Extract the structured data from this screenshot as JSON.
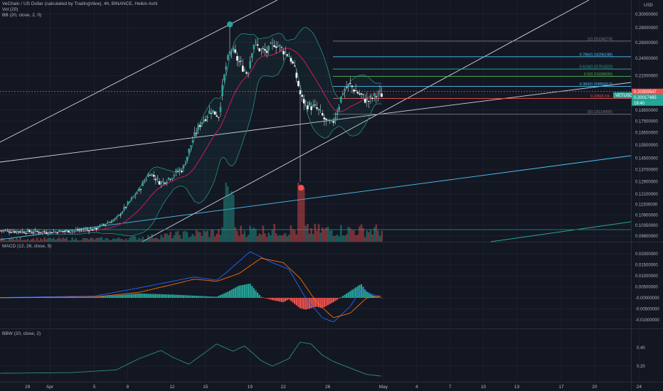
{
  "legend": {
    "title": "VeChain / US Dollar (calculated by TradingView), 4h, BINANCE, Heikin Ashi",
    "vol": "Vol (20)",
    "bb": "BB (20, close, 2, 0)",
    "macd": "MACD (12, 26, close, 9)",
    "bbw": "BBW (20, close, 2)"
  },
  "colors": {
    "background": "#131722",
    "up": "#26a69a",
    "down": "#ef5350",
    "bb_basis": "#c2185b",
    "bb_band": "#2a8f80",
    "macd": "#2962ff",
    "signal": "#ff6d00",
    "trendline": "#d1d4dc",
    "cyan_line": "#4fc3f7"
  },
  "currency": "USD",
  "chart_data": [
    {
      "type": "candlestick",
      "name": "price",
      "scale": "log",
      "y_ticks": [
        "0.30000000",
        "0.28000000",
        "0.26000000",
        "0.24000000",
        "0.22000000",
        "0.20000000",
        "0.18500000",
        "0.17500000",
        "0.16500000",
        "0.15500000",
        "0.14500000",
        "0.13700000",
        "0.12900000",
        "0.12100000",
        "0.11500000",
        "0.10900000",
        "0.10350000",
        "0.09800000"
      ],
      "y_tick_values": [
        0.3,
        0.28,
        0.26,
        0.24,
        0.22,
        0.2,
        0.185,
        0.175,
        0.165,
        0.155,
        0.145,
        0.137,
        0.129,
        0.121,
        0.115,
        0.109,
        0.1035,
        0.098
      ],
      "x_ticks": [
        "29",
        "Apr",
        "5",
        "8",
        "12",
        "15",
        "19",
        "22",
        "26",
        "May",
        "4",
        "7",
        "10",
        "13",
        "17",
        "20",
        "24"
      ],
      "x_tick_days": [
        -2,
        0,
        4,
        7,
        11,
        14,
        18,
        21,
        25,
        30,
        33,
        36,
        39,
        42,
        46,
        49,
        53
      ],
      "price_tags": [
        {
          "label": "0.20309547",
          "value": 0.2031,
          "color": "#ef5350"
        },
        {
          "label": "VETUSD",
          "value": 0.2002,
          "color": "#26a69a"
        },
        {
          "label": "0.20017485",
          "value": 0.2002,
          "color": "#26a69a"
        },
        {
          "label": "19:40",
          "value": 0.1985,
          "color": "#26a69a"
        }
      ],
      "fib_levels": [
        {
          "label": "1(0.26194274)",
          "value": 0.26194274,
          "color": "#787b86"
        },
        {
          "label": "0.786(0.24206248)",
          "value": 0.24206248,
          "color": "#4fc3f7"
        },
        {
          "label": "0.618(0.22751822)",
          "value": 0.22751822,
          "color": "#26a69a"
        },
        {
          "label": "0.5(0.21928030)",
          "value": 0.2192803,
          "color": "#4caf50"
        },
        {
          "label": "0.382(0.20855017)",
          "value": 0.20855017,
          "color": "#4fc3f7"
        },
        {
          "label": "0.236(0.19...",
          "value": 0.1961,
          "color": "#ef5350"
        },
        {
          "label": "0(0.18114000)",
          "value": 0.18114,
          "color": "#787b86"
        }
      ],
      "events": [
        {
          "label": "high",
          "day": 16.2,
          "value": 0.285,
          "color": "#26a69a"
        },
        {
          "label": "low",
          "day": 22.6,
          "value": 0.125,
          "color": "#ef5350"
        }
      ],
      "path": [
        [
          -6.5,
          0.101
        ],
        [
          0,
          0.1
        ],
        [
          4,
          0.1015
        ],
        [
          6,
          0.107
        ],
        [
          8,
          0.123
        ],
        [
          9,
          0.135
        ],
        [
          10,
          0.128
        ],
        [
          11,
          0.133
        ],
        [
          12,
          0.138
        ],
        [
          12.8,
          0.158
        ],
        [
          13.6,
          0.174
        ],
        [
          14.5,
          0.185
        ],
        [
          15.2,
          0.18
        ],
        [
          15.8,
          0.228
        ],
        [
          16.3,
          0.252
        ],
        [
          17,
          0.236
        ],
        [
          17.8,
          0.222
        ],
        [
          18.3,
          0.26
        ],
        [
          19,
          0.25
        ],
        [
          19.6,
          0.248
        ],
        [
          20.2,
          0.26
        ],
        [
          21,
          0.25
        ],
        [
          21.6,
          0.243
        ],
        [
          22.2,
          0.218
        ],
        [
          22.6,
          0.196
        ],
        [
          23.2,
          0.19
        ],
        [
          24,
          0.186
        ],
        [
          24.6,
          0.178
        ],
        [
          25,
          0.172
        ],
        [
          25.4,
          0.172
        ],
        [
          25.9,
          0.186
        ],
        [
          26.4,
          0.205
        ],
        [
          27,
          0.21
        ],
        [
          27.4,
          0.205
        ],
        [
          28,
          0.199
        ],
        [
          28.6,
          0.193
        ],
        [
          29,
          0.196
        ],
        [
          29.6,
          0.201
        ],
        [
          30,
          0.2
        ]
      ]
    },
    {
      "type": "bar",
      "name": "volume",
      "note": "Vol (20)"
    },
    {
      "type": "histogram+line",
      "name": "macd",
      "y_ticks": [
        "0.02000000",
        "0.01500000",
        "0.01000000",
        "0.00500000",
        "-0.00000000",
        "-0.00500000",
        "-0.01000000"
      ],
      "y_tick_values": [
        0.02,
        0.015,
        0.01,
        0.005,
        0,
        -0.005,
        -0.01
      ],
      "macd_path": [
        [
          -6.5,
          0.0
        ],
        [
          4,
          0.0008
        ],
        [
          8,
          0.0045
        ],
        [
          11,
          0.0075
        ],
        [
          13,
          0.0095
        ],
        [
          15,
          0.008
        ],
        [
          16,
          0.012
        ],
        [
          18,
          0.021
        ],
        [
          20,
          0.016
        ],
        [
          21.5,
          0.013
        ],
        [
          23,
          0.0
        ],
        [
          24.5,
          -0.009
        ],
        [
          25.5,
          -0.011
        ],
        [
          27,
          -0.004
        ],
        [
          28,
          0.004
        ],
        [
          29,
          0.0015
        ],
        [
          30,
          0.0005
        ]
      ],
      "signal_path": [
        [
          -6.5,
          0.0
        ],
        [
          4,
          0.0004
        ],
        [
          8,
          0.0025
        ],
        [
          11,
          0.006
        ],
        [
          13,
          0.0085
        ],
        [
          15,
          0.0075
        ],
        [
          17,
          0.011
        ],
        [
          19,
          0.018
        ],
        [
          21,
          0.016
        ],
        [
          22.5,
          0.009
        ],
        [
          24,
          -0.002
        ],
        [
          25.5,
          -0.009
        ],
        [
          27,
          -0.007
        ],
        [
          28.5,
          0.0
        ],
        [
          30,
          0.0008
        ]
      ]
    },
    {
      "type": "line",
      "name": "bbw",
      "y_ticks": [
        "0.40",
        "0.20"
      ],
      "y_tick_values": [
        0.4,
        0.2
      ],
      "path": [
        [
          -6.5,
          0.12
        ],
        [
          2,
          0.13
        ],
        [
          6,
          0.16
        ],
        [
          8,
          0.28
        ],
        [
          10,
          0.37
        ],
        [
          11,
          0.3
        ],
        [
          12.5,
          0.22
        ],
        [
          14,
          0.35
        ],
        [
          15,
          0.44
        ],
        [
          16.5,
          0.36
        ],
        [
          17.5,
          0.42
        ],
        [
          19,
          0.26
        ],
        [
          20,
          0.2
        ],
        [
          21.5,
          0.28
        ],
        [
          22.5,
          0.46
        ],
        [
          23.5,
          0.44
        ],
        [
          24.5,
          0.32
        ],
        [
          25.5,
          0.25
        ],
        [
          27,
          0.18
        ],
        [
          28.5,
          0.11
        ],
        [
          30,
          0.09
        ]
      ]
    }
  ]
}
